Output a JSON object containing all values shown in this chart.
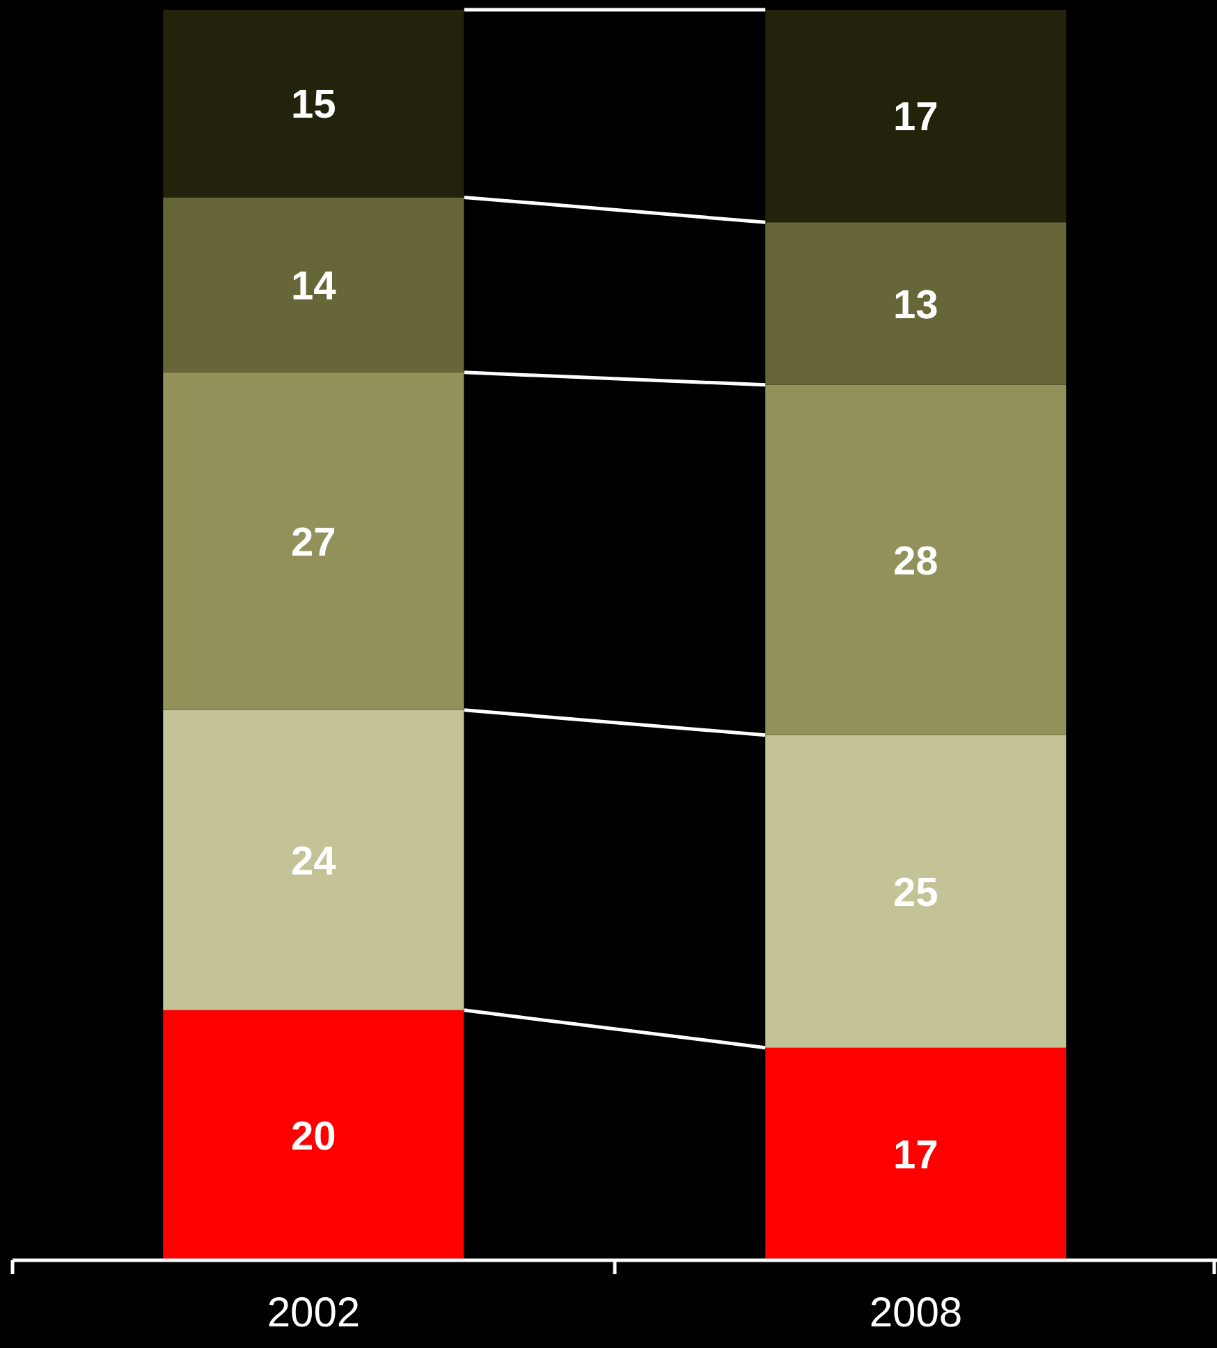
{
  "chart_data": {
    "type": "bar",
    "stacked": true,
    "data_labels": true,
    "categories": [
      "2002",
      "2008"
    ],
    "series": [
      {
        "color": "#ff0000",
        "values": [
          20,
          17
        ]
      },
      {
        "color": "#c4c398",
        "values": [
          24,
          25
        ]
      },
      {
        "color": "#919159",
        "values": [
          27,
          28
        ]
      },
      {
        "color": "#676638",
        "values": [
          14,
          13
        ]
      },
      {
        "color": "#23230c",
        "values": [
          15,
          17
        ]
      }
    ]
  }
}
